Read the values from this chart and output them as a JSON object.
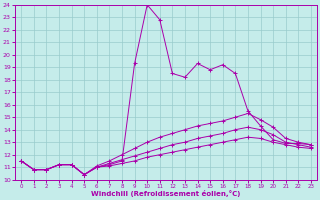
{
  "xlabel": "Windchill (Refroidissement éolien,°C)",
  "xlim": [
    -0.5,
    23.5
  ],
  "ylim": [
    10,
    24
  ],
  "xticks": [
    0,
    1,
    2,
    3,
    4,
    5,
    6,
    7,
    8,
    9,
    10,
    11,
    12,
    13,
    14,
    15,
    16,
    17,
    18,
    19,
    20,
    21,
    22,
    23
  ],
  "yticks": [
    10,
    11,
    12,
    13,
    14,
    15,
    16,
    17,
    18,
    19,
    20,
    21,
    22,
    23,
    24
  ],
  "background_color": "#c5ecea",
  "line_color": "#aa00aa",
  "grid_color": "#99cccc",
  "line1": [
    11.5,
    10.8,
    10.8,
    11.2,
    11.2,
    10.4,
    11.0,
    11.2,
    11.5,
    19.3,
    24.0,
    22.8,
    18.5,
    18.2,
    19.3,
    18.8,
    19.2,
    18.5,
    15.5,
    14.3,
    13.2,
    12.9,
    12.9,
    12.8
  ],
  "line2": [
    11.5,
    10.8,
    10.8,
    11.2,
    11.2,
    10.4,
    11.1,
    11.5,
    12.0,
    12.5,
    13.0,
    13.4,
    13.7,
    14.0,
    14.3,
    14.5,
    14.7,
    15.0,
    15.3,
    14.8,
    14.2,
    13.3,
    13.0,
    12.8
  ],
  "line3": [
    11.5,
    10.8,
    10.8,
    11.2,
    11.2,
    10.4,
    11.0,
    11.3,
    11.6,
    11.9,
    12.2,
    12.5,
    12.8,
    13.0,
    13.3,
    13.5,
    13.7,
    14.0,
    14.2,
    14.0,
    13.6,
    13.0,
    12.8,
    12.6
  ],
  "line4": [
    11.5,
    10.8,
    10.8,
    11.2,
    11.2,
    10.4,
    11.0,
    11.1,
    11.3,
    11.5,
    11.8,
    12.0,
    12.2,
    12.4,
    12.6,
    12.8,
    13.0,
    13.2,
    13.4,
    13.3,
    13.0,
    12.8,
    12.6,
    12.5
  ]
}
